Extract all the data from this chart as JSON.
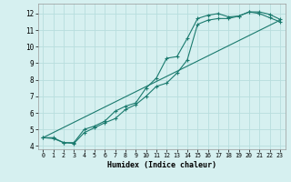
{
  "xlabel": "Humidex (Indice chaleur)",
  "bg_color": "#d6f0f0",
  "grid_color": "#b8dede",
  "line_color": "#1a7a6e",
  "xlim": [
    -0.5,
    23.5
  ],
  "ylim": [
    3.8,
    12.6
  ],
  "xticks": [
    0,
    1,
    2,
    3,
    4,
    5,
    6,
    7,
    8,
    9,
    10,
    11,
    12,
    13,
    14,
    15,
    16,
    17,
    18,
    19,
    20,
    21,
    22,
    23
  ],
  "yticks": [
    4,
    5,
    6,
    7,
    8,
    9,
    10,
    11,
    12
  ],
  "line1_x": [
    0,
    1,
    2,
    3,
    4,
    5,
    6,
    7,
    8,
    9,
    10,
    11,
    12,
    13,
    14,
    15,
    16,
    17,
    18,
    19,
    20,
    21,
    22,
    23
  ],
  "line1_y": [
    4.5,
    4.5,
    4.2,
    4.2,
    5.0,
    5.2,
    5.5,
    6.1,
    6.4,
    6.6,
    7.5,
    8.1,
    9.3,
    9.4,
    10.5,
    11.7,
    11.9,
    12.0,
    11.8,
    11.85,
    12.1,
    12.1,
    11.95,
    11.65
  ],
  "line2_x": [
    0,
    1,
    2,
    3,
    4,
    5,
    6,
    7,
    8,
    9,
    10,
    11,
    12,
    13,
    14,
    15,
    16,
    17,
    18,
    19,
    20,
    21,
    22,
    23
  ],
  "line2_y": [
    4.5,
    4.45,
    4.2,
    4.15,
    4.8,
    5.1,
    5.4,
    5.65,
    6.2,
    6.5,
    7.0,
    7.6,
    7.8,
    8.4,
    9.2,
    11.35,
    11.6,
    11.7,
    11.7,
    11.85,
    12.1,
    12.0,
    11.75,
    11.5
  ],
  "line3_x": [
    0,
    23
  ],
  "line3_y": [
    4.5,
    11.6
  ]
}
